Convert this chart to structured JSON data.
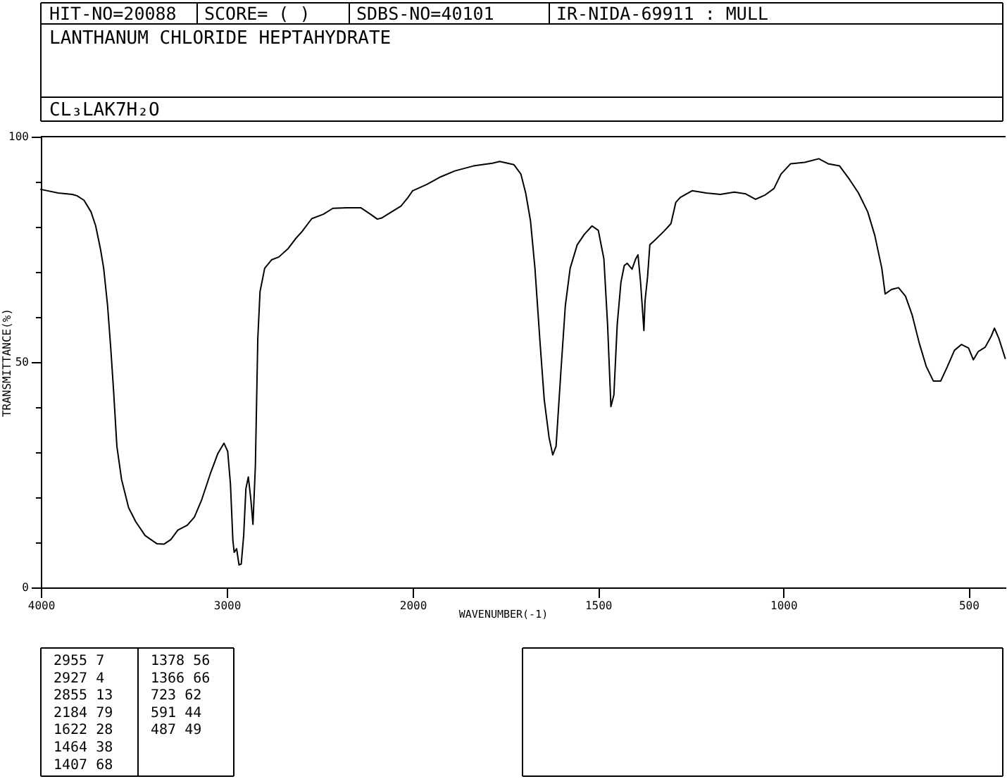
{
  "chart_data": [
    {
      "type": "line",
      "title": "LANTHANUM CHLORIDE HEPTAHYDRATE",
      "subtitle": "CL₃LAK7H₂O",
      "ylabel": "TRANSMITTANCE(%)",
      "annotations": [
        "HIT-NO=20088",
        "SCORE= ( )",
        "SDBS-NO=40101",
        "IR-NIDA-69911 : MULL",
        "2955 7",
        "2927 4",
        "2855 13",
        "2184 79",
        "1622 28",
        "1464 38",
        "1407 68",
        "1378 56",
        "1366 66",
        "723 62",
        "591 44",
        "487 49"
      ],
      "x": [
        4000,
        3907,
        3831,
        3806,
        3768,
        3730,
        3705,
        3679,
        3662,
        3641,
        3624,
        3609,
        3591,
        3566,
        3528,
        3490,
        3439,
        3376,
        3338,
        3301,
        3263,
        3212,
        3174,
        3136,
        3086,
        3048,
        3015,
        2995,
        2980,
        2967,
        2960,
        2947,
        2934,
        2922,
        2909,
        2897,
        2884,
        2871,
        2859,
        2846,
        2833,
        2821,
        2796,
        2758,
        2720,
        2669,
        2631,
        2594,
        2543,
        2480,
        2429,
        2354,
        2278,
        2227,
        2190,
        2164,
        2126,
        2063,
        2025,
        2000
      ],
      "series": [
        {
          "color": "#000000",
          "values": [
            88.3,
            87.5,
            87.2,
            86.9,
            85.9,
            83.3,
            80.2,
            75,
            70.8,
            62.5,
            53.1,
            43.8,
            31.3,
            24,
            17.7,
            14.6,
            11.5,
            9.7,
            9.6,
            10.6,
            12.7,
            13.8,
            15.6,
            19.3,
            25.5,
            29.7,
            32,
            30.2,
            22.9,
            10.4,
            7.8,
            8.6,
            5,
            5.2,
            11.5,
            21.9,
            24.5,
            19.8,
            14,
            27,
            55.2,
            65.6,
            70.8,
            72.7,
            73.3,
            75.2,
            77.3,
            79,
            81.8,
            82.8,
            84.1,
            84.2,
            84.2,
            82.8,
            81.7,
            82,
            83,
            84.6,
            86.5,
            88
          ]
        }
      ],
      "xlim": [
        4000,
        2000
      ],
      "xticks": [
        4000,
        3000,
        2000
      ],
      "ylim": [
        0,
        100
      ],
      "yticks": [
        0,
        {
          "value": 10,
          "label": null
        },
        {
          "value": 20,
          "label": null
        },
        {
          "value": 30,
          "label": null
        },
        {
          "value": 40,
          "label": null
        },
        50,
        {
          "value": 60,
          "label": null
        },
        {
          "value": 70,
          "label": null
        },
        {
          "value": 80,
          "label": null
        },
        {
          "value": 90,
          "label": null
        },
        100
      ],
      "marker": "none",
      "line_style": "solid"
    },
    {
      "type": "line",
      "xlabel": "WAVENUMBER(-1)",
      "x": [
        2000,
        1962,
        1924,
        1886,
        1836,
        1785,
        1765,
        1727,
        1708,
        1695,
        1682,
        1670,
        1657,
        1645,
        1632,
        1622,
        1613,
        1600,
        1588,
        1575,
        1556,
        1537,
        1516,
        1499,
        1484,
        1474,
        1465,
        1457,
        1448,
        1438,
        1429,
        1421,
        1408,
        1398,
        1392,
        1385,
        1376,
        1373,
        1366,
        1360,
        1347,
        1322,
        1303,
        1290,
        1278,
        1246,
        1208,
        1170,
        1132,
        1101,
        1075,
        1050,
        1025,
        1006,
        980,
        942,
        904,
        879,
        848,
        822,
        797,
        772,
        753,
        734,
        725,
        708,
        689,
        670,
        652,
        633,
        614,
        595,
        575,
        557,
        538,
        519,
        500,
        487,
        474,
        455,
        439,
        430,
        418,
        401
      ],
      "series": [
        {
          "color": "#000000",
          "values": [
            88,
            89.4,
            91.1,
            92.4,
            93.5,
            94.1,
            94.5,
            93.8,
            91.7,
            87.5,
            81.3,
            70.8,
            55.2,
            41.7,
            33.3,
            29.4,
            31.3,
            47.9,
            62.5,
            70.8,
            76,
            78.3,
            80.2,
            79.2,
            72.9,
            58.3,
            40.1,
            42.7,
            58.3,
            67.7,
            71.4,
            71.9,
            70.6,
            72.9,
            73.8,
            67.7,
            57,
            63.5,
            69,
            76,
            77,
            79,
            80.7,
            85.4,
            86.5,
            88,
            87.5,
            87.2,
            87.7,
            87.3,
            86.1,
            87,
            88.5,
            91.7,
            94,
            94.3,
            95.1,
            94,
            93.5,
            90.6,
            87.5,
            83.3,
            78.1,
            70.8,
            65.1,
            66.1,
            66.5,
            64.6,
            60.4,
            54.2,
            49,
            45.8,
            45.8,
            49,
            52.6,
            53.9,
            53.1,
            50.5,
            52.3,
            53.3,
            55.7,
            57.5,
            55.2,
            50.8
          ]
        }
      ],
      "xlim": [
        2000,
        400
      ],
      "xticks": [
        1500,
        1000,
        500
      ],
      "ylim": [
        0,
        100
      ],
      "tick_labels": "x",
      "marker": "none",
      "line_style": "solid"
    }
  ]
}
